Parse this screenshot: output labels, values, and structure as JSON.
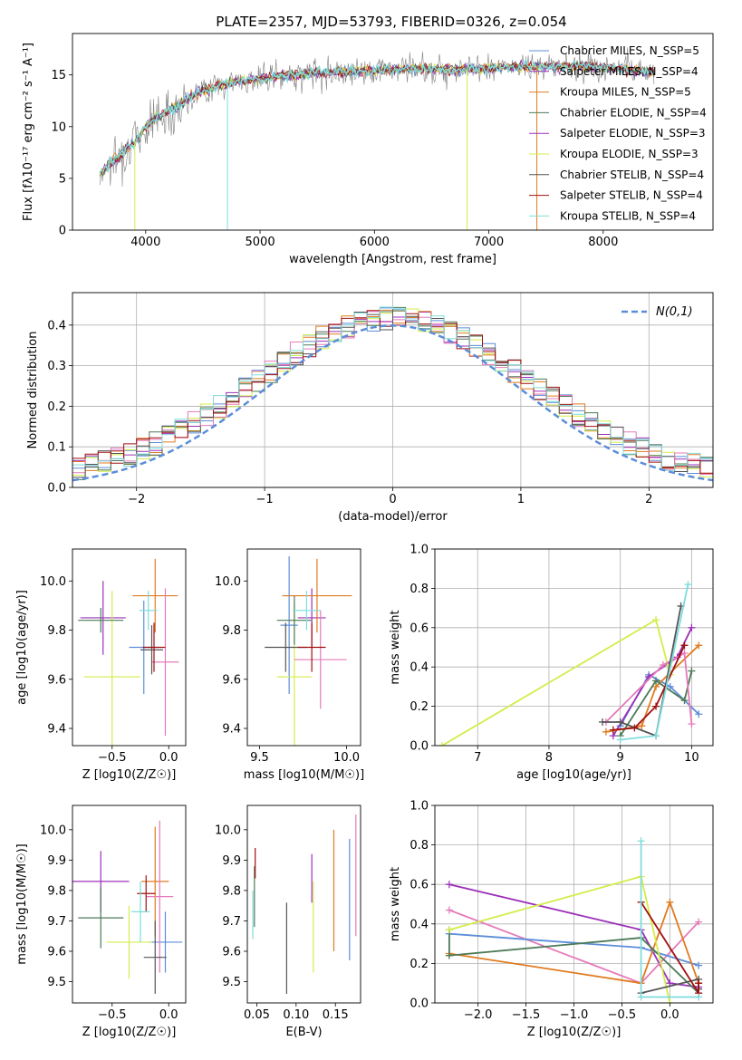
{
  "title": "PLATE=2357, MJD=53793, FIBERID=0326, z=0.054",
  "colors": [
    "#5b8dd9",
    "#9b30b8",
    "#e07b20",
    "#d4ec4a",
    "#4d7a57",
    "#e57aba",
    "#555555",
    "#a01010",
    "#7fdcdc"
  ],
  "chart_data": [
    {
      "id": "spectrum",
      "type": "line",
      "xlabel": "wavelength [Angstrom, rest frame]",
      "ylabel": "Flux [fλ10⁻¹⁷ erg cm⁻² s⁻¹ A⁻¹]",
      "xlim": [
        3360,
        8960
      ],
      "ylim": [
        0,
        19
      ],
      "xticks": [
        4000,
        5000,
        6000,
        7000,
        8000
      ],
      "yticks": [
        0,
        5,
        10,
        15
      ],
      "series": [
        {
          "name": "Chabrier MILES, N_SSP=5",
          "color": "#5b8dd9"
        },
        {
          "name": "Salpeter MILES, N_SSP=4",
          "color": "#9b30b8"
        },
        {
          "name": "Kroupa MILES, N_SSP=5",
          "color": "#e07b20"
        },
        {
          "name": "Chabrier ELODIE, N_SSP=4",
          "color": "#4d7a57"
        },
        {
          "name": "Salpeter ELODIE, N_SSP=3",
          "color": "#9b30b8"
        },
        {
          "name": "Kroupa ELODIE, N_SSP=3",
          "color": "#d4ec4a"
        },
        {
          "name": "Chabrier STELIB, N_SSP=4",
          "color": "#555555"
        },
        {
          "name": "Salpeter STELIB, N_SSP=4",
          "color": "#a01010"
        },
        {
          "name": "Kroupa STELIB, N_SSP=4",
          "color": "#7fdcdc"
        }
      ],
      "continuum": {
        "x": [
          3600,
          3700,
          3800,
          3900,
          4000,
          4100,
          4200,
          4300,
          4400,
          4500,
          4700,
          4900,
          5100,
          5300,
          5500,
          5700,
          5900,
          6100,
          6300,
          6500,
          6700,
          6900,
          7100,
          7300,
          7500,
          7700,
          7900,
          8100,
          8300,
          8500
        ],
        "y": [
          5.5,
          6.5,
          7.5,
          8.5,
          10.0,
          11.0,
          11.5,
          12.0,
          13.0,
          13.5,
          14.2,
          14.5,
          14.8,
          15.0,
          15.2,
          15.3,
          15.4,
          15.5,
          15.6,
          15.6,
          15.5,
          15.6,
          15.7,
          15.8,
          15.8,
          15.9,
          15.8,
          15.6,
          15.4,
          15.3
        ]
      }
    },
    {
      "id": "residuals",
      "type": "bar",
      "xlabel": "(data-model)/error",
      "ylabel": "Normed distribution",
      "xlim": [
        -2.5,
        2.5
      ],
      "ylim": [
        0,
        0.48
      ],
      "xticks": [
        -2,
        -1,
        0,
        1,
        2
      ],
      "yticks": [
        0.0,
        0.1,
        0.2,
        0.3,
        0.4
      ],
      "legend": "N(0,1)",
      "bin_edges": [
        -2.5,
        -2.4,
        -2.3,
        -2.2,
        -2.1,
        -2.0,
        -1.9,
        -1.8,
        -1.7,
        -1.6,
        -1.5,
        -1.4,
        -1.3,
        -1.2,
        -1.1,
        -1.0,
        -0.9,
        -0.8,
        -0.7,
        -0.6,
        -0.5,
        -0.4,
        -0.3,
        -0.2,
        -0.1,
        0.0,
        0.1,
        0.2,
        0.3,
        0.4,
        0.5,
        0.6,
        0.7,
        0.8,
        0.9,
        1.0,
        1.1,
        1.2,
        1.3,
        1.4,
        1.5,
        1.6,
        1.7,
        1.8,
        1.9,
        2.0,
        2.1,
        2.2,
        2.3,
        2.4,
        2.5
      ],
      "gaussian_mean": 0,
      "gaussian_sigma": 1
    },
    {
      "id": "age_vs_Z",
      "type": "scatter",
      "xlabel": "Z [log10(Z/Z☉)]",
      "ylabel": "age  [log10(age/yr)]",
      "xlim": [
        -0.85,
        0.15
      ],
      "ylim": [
        9.33,
        10.13
      ],
      "xticks": [
        -0.5,
        0.0
      ],
      "yticks": [
        9.4,
        9.6,
        9.8,
        10.0
      ],
      "points": [
        {
          "x": -0.22,
          "y": 9.73,
          "xerr": 0.13,
          "yerr": 0.19,
          "color": "#5b8dd9"
        },
        {
          "x": -0.58,
          "y": 9.85,
          "xerr": 0.2,
          "yerr": 0.15,
          "color": "#9b30b8"
        },
        {
          "x": -0.12,
          "y": 9.94,
          "xerr": 0.2,
          "yerr": 0.15,
          "color": "#e07b20"
        },
        {
          "x": -0.5,
          "y": 9.61,
          "xerr": 0.25,
          "yerr": 0.35,
          "color": "#d4ec4a"
        },
        {
          "x": -0.6,
          "y": 9.84,
          "xerr": 0.2,
          "yerr": 0.05,
          "color": "#4d7a57"
        },
        {
          "x": -0.03,
          "y": 9.67,
          "xerr": 0.12,
          "yerr": 0.3,
          "color": "#e57aba"
        },
        {
          "x": -0.15,
          "y": 9.72,
          "xerr": 0.1,
          "yerr": 0.1,
          "color": "#555555"
        },
        {
          "x": -0.13,
          "y": 9.73,
          "xerr": 0.1,
          "yerr": 0.1,
          "color": "#a01010"
        },
        {
          "x": -0.18,
          "y": 9.88,
          "xerr": 0.08,
          "yerr": 0.08,
          "color": "#7fdcdc"
        }
      ]
    },
    {
      "id": "age_vs_mass",
      "type": "scatter",
      "xlabel": "mass [log10(M/M☉)]",
      "ylabel": "",
      "xlim": [
        9.43,
        10.08
      ],
      "ylim": [
        9.33,
        10.13
      ],
      "xticks": [
        9.5,
        10.0
      ],
      "yticks": [
        9.4,
        9.6,
        9.8,
        10.0
      ],
      "points": [
        {
          "x": 9.67,
          "y": 9.82,
          "xerr": 0.05,
          "yerr": 0.28,
          "color": "#5b8dd9"
        },
        {
          "x": 9.8,
          "y": 9.85,
          "xerr": 0.08,
          "yerr": 0.12,
          "color": "#9b30b8"
        },
        {
          "x": 9.83,
          "y": 9.94,
          "xerr": 0.2,
          "yerr": 0.15,
          "color": "#e07b20"
        },
        {
          "x": 9.7,
          "y": 9.61,
          "xerr": 0.1,
          "yerr": 0.3,
          "color": "#d4ec4a"
        },
        {
          "x": 9.7,
          "y": 9.84,
          "xerr": 0.1,
          "yerr": 0.1,
          "color": "#4d7a57"
        },
        {
          "x": 9.85,
          "y": 9.68,
          "xerr": 0.15,
          "yerr": 0.2,
          "color": "#e57aba"
        },
        {
          "x": 9.65,
          "y": 9.73,
          "xerr": 0.12,
          "yerr": 0.1,
          "color": "#555555"
        },
        {
          "x": 9.8,
          "y": 9.73,
          "xerr": 0.08,
          "yerr": 0.1,
          "color": "#a01010"
        },
        {
          "x": 9.77,
          "y": 9.88,
          "xerr": 0.08,
          "yerr": 0.08,
          "color": "#7fdcdc"
        }
      ]
    },
    {
      "id": "weight_vs_age",
      "type": "line",
      "xlabel": "age  [log10(age/yr)]",
      "ylabel": "mass weight",
      "xlim": [
        6.4,
        10.3
      ],
      "ylim": [
        0,
        1.0
      ],
      "xticks": [
        7,
        8,
        9,
        10
      ],
      "yticks": [
        0.0,
        0.2,
        0.4,
        0.6,
        0.8,
        1.0
      ],
      "series": [
        {
          "color": "#5b8dd9",
          "x": [
            9.0,
            9.4,
            9.7,
            10.1
          ],
          "y": [
            0.1,
            0.36,
            0.3,
            0.16
          ]
        },
        {
          "color": "#9b30b8",
          "x": [
            8.9,
            9.4,
            9.8,
            10.0
          ],
          "y": [
            0.05,
            0.35,
            0.45,
            0.6
          ]
        },
        {
          "color": "#e07b20",
          "x": [
            8.8,
            9.3,
            9.5,
            10.1
          ],
          "y": [
            0.07,
            0.1,
            0.3,
            0.51
          ]
        },
        {
          "color": "#d4ec4a",
          "x": [
            6.5,
            9.5,
            9.7
          ],
          "y": [
            0.0,
            0.64,
            0.36
          ]
        },
        {
          "color": "#4d7a57",
          "x": [
            9.0,
            9.5,
            9.9,
            10.0
          ],
          "y": [
            0.05,
            0.33,
            0.23,
            0.38
          ]
        },
        {
          "color": "#e57aba",
          "x": [
            8.8,
            9.6,
            9.9,
            10.0
          ],
          "y": [
            0.12,
            0.41,
            0.47,
            0.11
          ]
        },
        {
          "color": "#555555",
          "x": [
            8.75,
            9.0,
            9.5,
            9.85
          ],
          "y": [
            0.12,
            0.12,
            0.05,
            0.71
          ]
        },
        {
          "color": "#a01010",
          "x": [
            8.9,
            9.2,
            9.5,
            9.9
          ],
          "y": [
            0.08,
            0.09,
            0.2,
            0.51
          ]
        },
        {
          "color": "#7fdcdc",
          "x": [
            9.0,
            9.5,
            9.95
          ],
          "y": [
            0.03,
            0.05,
            0.82
          ]
        }
      ]
    },
    {
      "id": "mass_vs_Z",
      "type": "scatter",
      "xlabel": "Z [log10(Z/Z☉)]",
      "ylabel": "mass [log10(M/M☉)]",
      "xlim": [
        -0.85,
        0.15
      ],
      "ylim": [
        9.43,
        10.08
      ],
      "xticks": [
        -0.5,
        0.0
      ],
      "yticks": [
        9.5,
        9.6,
        9.7,
        9.8,
        9.9,
        10.0
      ],
      "points": [
        {
          "x": -0.03,
          "y": 9.63,
          "xerr": 0.15,
          "yerr": 0.1,
          "color": "#5b8dd9"
        },
        {
          "x": -0.6,
          "y": 9.83,
          "xerr": 0.25,
          "yerr": 0.1,
          "color": "#9b30b8"
        },
        {
          "x": -0.12,
          "y": 9.83,
          "xerr": 0.12,
          "yerr": 0.18,
          "color": "#e07b20"
        },
        {
          "x": -0.35,
          "y": 9.63,
          "xerr": 0.2,
          "yerr": 0.12,
          "color": "#d4ec4a"
        },
        {
          "x": -0.6,
          "y": 9.71,
          "xerr": 0.2,
          "yerr": 0.1,
          "color": "#4d7a57"
        },
        {
          "x": -0.08,
          "y": 9.78,
          "xerr": 0.12,
          "yerr": 0.25,
          "color": "#e57aba"
        },
        {
          "x": -0.12,
          "y": 9.58,
          "xerr": 0.1,
          "yerr": 0.12,
          "color": "#555555"
        },
        {
          "x": -0.2,
          "y": 9.79,
          "xerr": 0.08,
          "yerr": 0.06,
          "color": "#a01010"
        },
        {
          "x": -0.25,
          "y": 9.73,
          "xerr": 0.08,
          "yerr": 0.1,
          "color": "#7fdcdc"
        }
      ]
    },
    {
      "id": "mass_vs_EBV",
      "type": "scatter",
      "xlabel": "E(B-V)",
      "ylabel": "",
      "xlim": [
        0.038,
        0.182
      ],
      "ylim": [
        9.43,
        10.08
      ],
      "xticks": [
        0.05,
        0.1,
        0.15
      ],
      "yticks": [
        9.5,
        9.6,
        9.7,
        9.8,
        9.9,
        10.0
      ],
      "points": [
        {
          "x": 0.168,
          "y": 9.77,
          "yerr": 0.2,
          "color": "#5b8dd9"
        },
        {
          "x": 0.12,
          "y": 9.84,
          "yerr": 0.08,
          "color": "#9b30b8"
        },
        {
          "x": 0.148,
          "y": 9.8,
          "yerr": 0.2,
          "color": "#e07b20"
        },
        {
          "x": 0.122,
          "y": 9.68,
          "yerr": 0.15,
          "color": "#d4ec4a"
        },
        {
          "x": 0.047,
          "y": 9.78,
          "yerr": 0.1,
          "color": "#4d7a57"
        },
        {
          "x": 0.176,
          "y": 9.85,
          "yerr": 0.2,
          "color": "#e57aba"
        },
        {
          "x": 0.088,
          "y": 9.61,
          "yerr": 0.15,
          "color": "#555555"
        },
        {
          "x": 0.048,
          "y": 9.89,
          "yerr": 0.05,
          "color": "#a01010"
        },
        {
          "x": 0.045,
          "y": 9.72,
          "yerr": 0.08,
          "color": "#7fdcdc"
        }
      ]
    },
    {
      "id": "weight_vs_Z",
      "type": "line",
      "xlabel": "Z [log10(Z/Z☉)]",
      "ylabel": "mass weight",
      "xlim": [
        -2.45,
        0.45
      ],
      "ylim": [
        0,
        1.0
      ],
      "xticks": [
        -2.0,
        -1.5,
        -1.0,
        -0.5,
        0.0
      ],
      "yticks": [
        0.0,
        0.2,
        0.4,
        0.6,
        0.8,
        1.0
      ],
      "series": [
        {
          "color": "#9b30b8",
          "x": [
            -2.3,
            -0.3,
            0.0,
            0.3
          ],
          "y": [
            0.6,
            0.37,
            0.1,
            0.08
          ]
        },
        {
          "color": "#e57aba",
          "x": [
            -2.3,
            -0.3,
            0.3
          ],
          "y": [
            0.47,
            0.1,
            0.41
          ]
        },
        {
          "color": "#5b8dd9",
          "x": [
            -2.3,
            -0.3,
            0.3
          ],
          "y": [
            0.35,
            0.28,
            0.19
          ]
        },
        {
          "color": "#e07b20",
          "x": [
            -2.3,
            -0.3,
            0.0,
            0.3
          ],
          "y": [
            0.25,
            0.1,
            0.51,
            0.1
          ]
        },
        {
          "color": "#4d7a57",
          "x": [
            -2.3,
            -2.3,
            -0.3,
            0.3
          ],
          "y": [
            0.37,
            0.24,
            0.33,
            0.05
          ]
        },
        {
          "color": "#d4ec4a",
          "x": [
            -2.3,
            -0.3,
            0.0
          ],
          "y": [
            0.37,
            0.64,
            0.0
          ]
        },
        {
          "color": "#555555",
          "x": [
            -0.3,
            0.3,
            0.3
          ],
          "y": [
            0.05,
            0.12,
            0.07
          ]
        },
        {
          "color": "#a01010",
          "x": [
            -0.3,
            0.3,
            0.3
          ],
          "y": [
            0.51,
            0.05,
            0.1
          ]
        },
        {
          "color": "#7fdcdc",
          "x": [
            -0.3,
            -0.3,
            0.3
          ],
          "y": [
            0.82,
            0.03,
            0.03
          ]
        }
      ]
    }
  ]
}
